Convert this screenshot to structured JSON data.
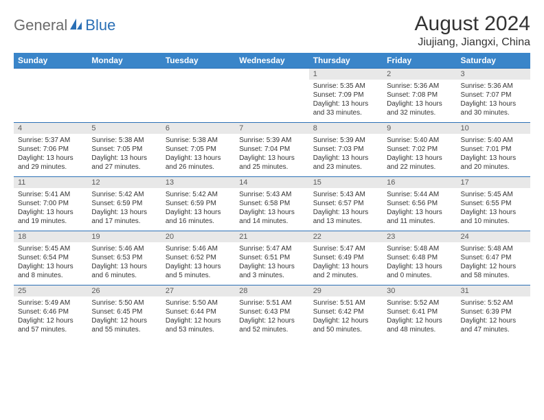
{
  "logo": {
    "general": "General",
    "blue": "Blue"
  },
  "title": "August 2024",
  "location": "Jiujiang, Jiangxi, China",
  "colors": {
    "header_bg": "#3a85c9",
    "border": "#2a6fb5",
    "daynum_bg": "#e8e8e8",
    "text": "#333333",
    "logo_gray": "#6b6b6b",
    "logo_blue": "#2a6fb5"
  },
  "weekdays": [
    "Sunday",
    "Monday",
    "Tuesday",
    "Wednesday",
    "Thursday",
    "Friday",
    "Saturday"
  ],
  "weeks": [
    [
      {
        "n": "",
        "sr": "",
        "ss": "",
        "dl": ""
      },
      {
        "n": "",
        "sr": "",
        "ss": "",
        "dl": ""
      },
      {
        "n": "",
        "sr": "",
        "ss": "",
        "dl": ""
      },
      {
        "n": "",
        "sr": "",
        "ss": "",
        "dl": ""
      },
      {
        "n": "1",
        "sr": "Sunrise: 5:35 AM",
        "ss": "Sunset: 7:09 PM",
        "dl": "Daylight: 13 hours and 33 minutes."
      },
      {
        "n": "2",
        "sr": "Sunrise: 5:36 AM",
        "ss": "Sunset: 7:08 PM",
        "dl": "Daylight: 13 hours and 32 minutes."
      },
      {
        "n": "3",
        "sr": "Sunrise: 5:36 AM",
        "ss": "Sunset: 7:07 PM",
        "dl": "Daylight: 13 hours and 30 minutes."
      }
    ],
    [
      {
        "n": "4",
        "sr": "Sunrise: 5:37 AM",
        "ss": "Sunset: 7:06 PM",
        "dl": "Daylight: 13 hours and 29 minutes."
      },
      {
        "n": "5",
        "sr": "Sunrise: 5:38 AM",
        "ss": "Sunset: 7:05 PM",
        "dl": "Daylight: 13 hours and 27 minutes."
      },
      {
        "n": "6",
        "sr": "Sunrise: 5:38 AM",
        "ss": "Sunset: 7:05 PM",
        "dl": "Daylight: 13 hours and 26 minutes."
      },
      {
        "n": "7",
        "sr": "Sunrise: 5:39 AM",
        "ss": "Sunset: 7:04 PM",
        "dl": "Daylight: 13 hours and 25 minutes."
      },
      {
        "n": "8",
        "sr": "Sunrise: 5:39 AM",
        "ss": "Sunset: 7:03 PM",
        "dl": "Daylight: 13 hours and 23 minutes."
      },
      {
        "n": "9",
        "sr": "Sunrise: 5:40 AM",
        "ss": "Sunset: 7:02 PM",
        "dl": "Daylight: 13 hours and 22 minutes."
      },
      {
        "n": "10",
        "sr": "Sunrise: 5:40 AM",
        "ss": "Sunset: 7:01 PM",
        "dl": "Daylight: 13 hours and 20 minutes."
      }
    ],
    [
      {
        "n": "11",
        "sr": "Sunrise: 5:41 AM",
        "ss": "Sunset: 7:00 PM",
        "dl": "Daylight: 13 hours and 19 minutes."
      },
      {
        "n": "12",
        "sr": "Sunrise: 5:42 AM",
        "ss": "Sunset: 6:59 PM",
        "dl": "Daylight: 13 hours and 17 minutes."
      },
      {
        "n": "13",
        "sr": "Sunrise: 5:42 AM",
        "ss": "Sunset: 6:59 PM",
        "dl": "Daylight: 13 hours and 16 minutes."
      },
      {
        "n": "14",
        "sr": "Sunrise: 5:43 AM",
        "ss": "Sunset: 6:58 PM",
        "dl": "Daylight: 13 hours and 14 minutes."
      },
      {
        "n": "15",
        "sr": "Sunrise: 5:43 AM",
        "ss": "Sunset: 6:57 PM",
        "dl": "Daylight: 13 hours and 13 minutes."
      },
      {
        "n": "16",
        "sr": "Sunrise: 5:44 AM",
        "ss": "Sunset: 6:56 PM",
        "dl": "Daylight: 13 hours and 11 minutes."
      },
      {
        "n": "17",
        "sr": "Sunrise: 5:45 AM",
        "ss": "Sunset: 6:55 PM",
        "dl": "Daylight: 13 hours and 10 minutes."
      }
    ],
    [
      {
        "n": "18",
        "sr": "Sunrise: 5:45 AM",
        "ss": "Sunset: 6:54 PM",
        "dl": "Daylight: 13 hours and 8 minutes."
      },
      {
        "n": "19",
        "sr": "Sunrise: 5:46 AM",
        "ss": "Sunset: 6:53 PM",
        "dl": "Daylight: 13 hours and 6 minutes."
      },
      {
        "n": "20",
        "sr": "Sunrise: 5:46 AM",
        "ss": "Sunset: 6:52 PM",
        "dl": "Daylight: 13 hours and 5 minutes."
      },
      {
        "n": "21",
        "sr": "Sunrise: 5:47 AM",
        "ss": "Sunset: 6:51 PM",
        "dl": "Daylight: 13 hours and 3 minutes."
      },
      {
        "n": "22",
        "sr": "Sunrise: 5:47 AM",
        "ss": "Sunset: 6:49 PM",
        "dl": "Daylight: 13 hours and 2 minutes."
      },
      {
        "n": "23",
        "sr": "Sunrise: 5:48 AM",
        "ss": "Sunset: 6:48 PM",
        "dl": "Daylight: 13 hours and 0 minutes."
      },
      {
        "n": "24",
        "sr": "Sunrise: 5:48 AM",
        "ss": "Sunset: 6:47 PM",
        "dl": "Daylight: 12 hours and 58 minutes."
      }
    ],
    [
      {
        "n": "25",
        "sr": "Sunrise: 5:49 AM",
        "ss": "Sunset: 6:46 PM",
        "dl": "Daylight: 12 hours and 57 minutes."
      },
      {
        "n": "26",
        "sr": "Sunrise: 5:50 AM",
        "ss": "Sunset: 6:45 PM",
        "dl": "Daylight: 12 hours and 55 minutes."
      },
      {
        "n": "27",
        "sr": "Sunrise: 5:50 AM",
        "ss": "Sunset: 6:44 PM",
        "dl": "Daylight: 12 hours and 53 minutes."
      },
      {
        "n": "28",
        "sr": "Sunrise: 5:51 AM",
        "ss": "Sunset: 6:43 PM",
        "dl": "Daylight: 12 hours and 52 minutes."
      },
      {
        "n": "29",
        "sr": "Sunrise: 5:51 AM",
        "ss": "Sunset: 6:42 PM",
        "dl": "Daylight: 12 hours and 50 minutes."
      },
      {
        "n": "30",
        "sr": "Sunrise: 5:52 AM",
        "ss": "Sunset: 6:41 PM",
        "dl": "Daylight: 12 hours and 48 minutes."
      },
      {
        "n": "31",
        "sr": "Sunrise: 5:52 AM",
        "ss": "Sunset: 6:39 PM",
        "dl": "Daylight: 12 hours and 47 minutes."
      }
    ]
  ]
}
